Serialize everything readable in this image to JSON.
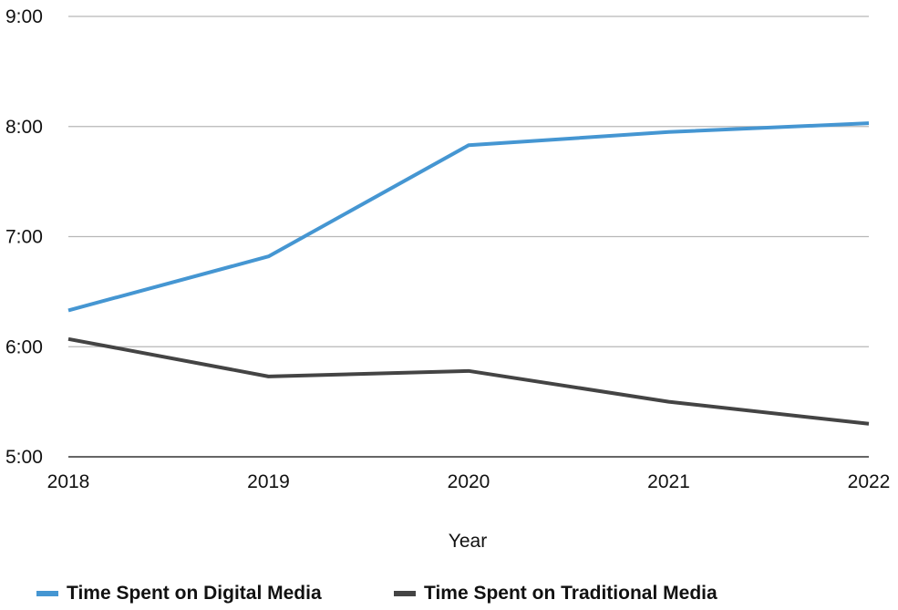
{
  "chart_data": {
    "type": "line",
    "categories": [
      "2018",
      "2019",
      "2020",
      "2021",
      "2022"
    ],
    "xlabel": "Year",
    "ylabel": "",
    "y_ticks": [
      "5:00",
      "6:00",
      "7:00",
      "8:00",
      "9:00"
    ],
    "ylim_hours": [
      5,
      9
    ],
    "grid": true,
    "legend_position": "bottom",
    "series": [
      {
        "name": "Time Spent on Digital Media",
        "color": "#4596d2",
        "values": [
          "6:20",
          "6:49",
          "7:50",
          "7:57",
          "8:02"
        ],
        "values_hours": [
          6.33,
          6.82,
          7.83,
          7.95,
          8.03
        ]
      },
      {
        "name": "Time Spent on Traditional Media",
        "color": "#444444",
        "values": [
          "6:04",
          "5:44",
          "5:47",
          "5:30",
          "5:18"
        ],
        "values_hours": [
          6.07,
          5.73,
          5.78,
          5.5,
          5.3
        ]
      }
    ]
  }
}
